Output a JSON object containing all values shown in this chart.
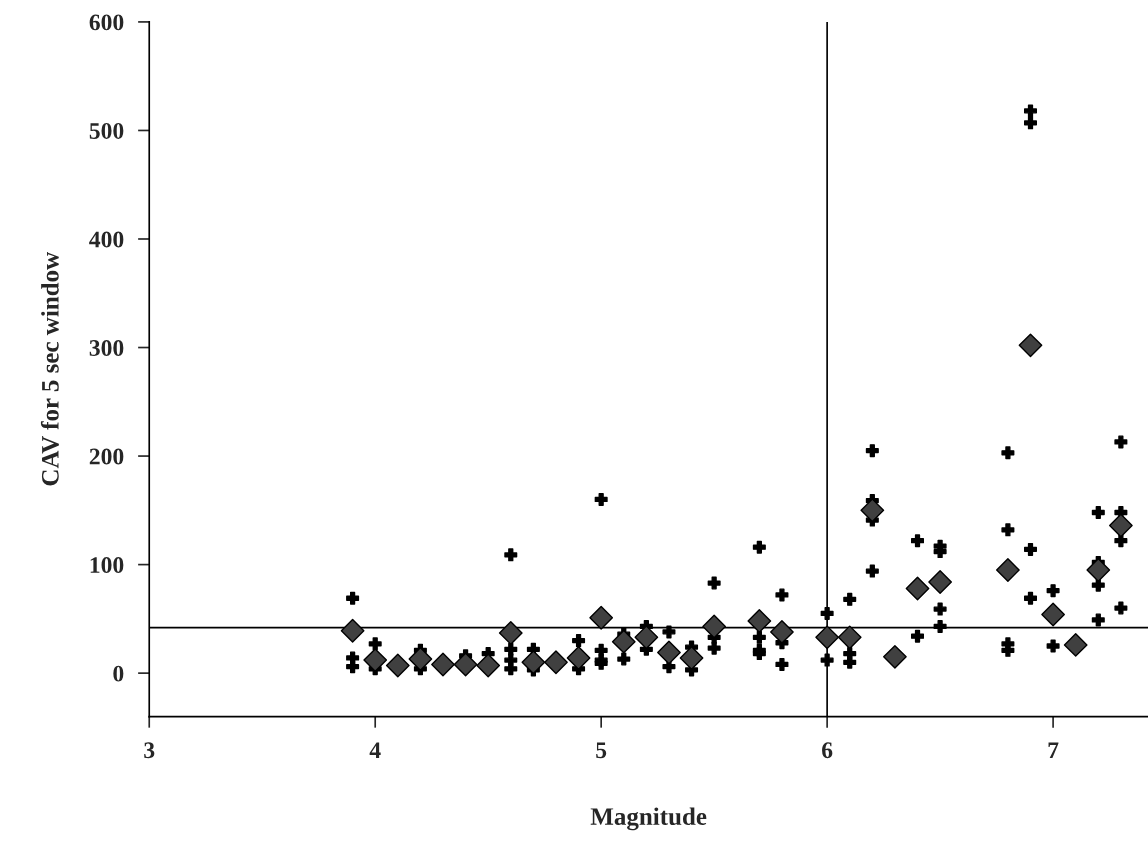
{
  "chart_data": {
    "type": "scatter",
    "xlabel": "Magnitude",
    "ylabel": "CAV for 5 sec window",
    "xlim": [
      3,
      7.42
    ],
    "xticks": [
      3,
      4,
      5,
      6,
      7
    ],
    "ylim": [
      -40,
      600
    ],
    "yticks": [
      0,
      100,
      200,
      300,
      400,
      500,
      600
    ],
    "grid": false,
    "series": [
      {
        "color": "#000000",
        "marker": "cross",
        "x": [
          3.9,
          3.9,
          3.9,
          4.0,
          4.0,
          4.2,
          4.2,
          4.4,
          4.5,
          4.6,
          4.6,
          4.6,
          4.6,
          4.7,
          4.7,
          4.9,
          4.9,
          5.0,
          5.0,
          5.0,
          5.0,
          5.1,
          5.1,
          5.2,
          5.2,
          5.3,
          5.3,
          5.4,
          5.4,
          5.5,
          5.5,
          5.5,
          5.7,
          5.7,
          5.7,
          5.7,
          5.8,
          5.8,
          5.8,
          6.0,
          6.0,
          6.1,
          6.1,
          6.1,
          6.2,
          6.2,
          6.2,
          6.2,
          6.4,
          6.4,
          6.5,
          6.5,
          6.5,
          6.5,
          6.8,
          6.8,
          6.8,
          6.8,
          6.9,
          6.9,
          6.9,
          6.9,
          7.0,
          7.0,
          7.2,
          7.2,
          7.2,
          7.2,
          7.3,
          7.3,
          7.3,
          7.3
        ],
        "values": [
          69,
          14,
          6,
          27,
          4,
          21,
          4,
          16,
          18,
          109,
          22,
          12,
          4,
          22,
          3,
          30,
          4,
          160,
          21,
          12,
          9,
          36,
          13,
          43,
          22,
          38,
          6,
          24,
          3,
          83,
          33,
          23,
          116,
          33,
          21,
          18,
          72,
          28,
          8,
          55,
          12,
          68,
          18,
          10,
          205,
          159,
          141,
          94,
          122,
          34,
          117,
          112,
          59,
          43,
          203,
          132,
          27,
          21,
          518,
          507,
          114,
          69,
          76,
          25,
          148,
          102,
          81,
          49,
          213,
          148,
          122,
          60
        ]
      },
      {
        "color": "#404040",
        "marker": "diamond",
        "x": [
          3.9,
          4.0,
          4.1,
          4.2,
          4.3,
          4.4,
          4.5,
          4.6,
          4.7,
          4.8,
          4.9,
          5.0,
          5.1,
          5.2,
          5.3,
          5.4,
          5.5,
          5.7,
          5.8,
          6.0,
          6.1,
          6.2,
          6.3,
          6.4,
          6.5,
          6.8,
          6.9,
          7.0,
          7.1,
          7.2,
          7.3
        ],
        "values": [
          39,
          12,
          7,
          13,
          8,
          8,
          7,
          37,
          10,
          10,
          14,
          51,
          29,
          33,
          19,
          14,
          43,
          48,
          38,
          33,
          33,
          150,
          15,
          78,
          84,
          95,
          302,
          54,
          26,
          95,
          136
        ]
      }
    ],
    "ref_lines": [
      {
        "axis": "x",
        "value": 6
      },
      {
        "axis": "y",
        "value": 42
      }
    ]
  }
}
